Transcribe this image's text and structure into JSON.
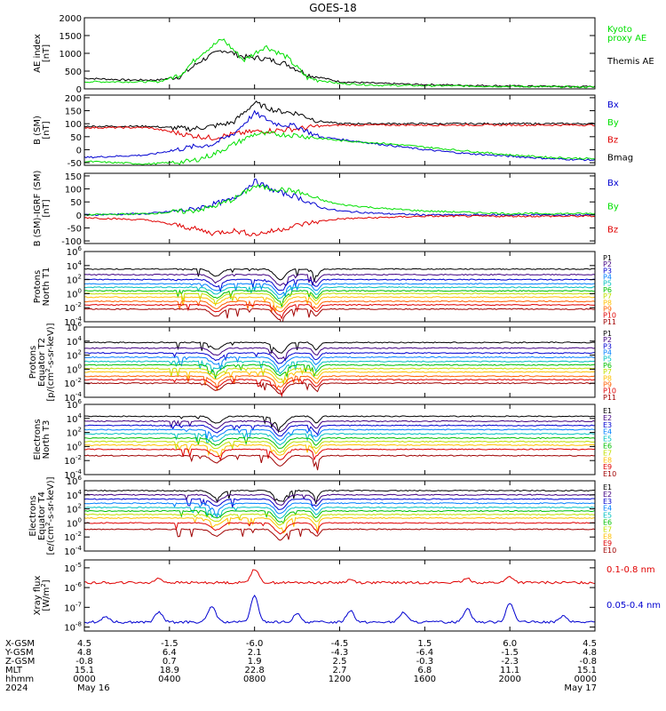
{
  "title": "GOES-18",
  "colors": {
    "black": "#000000",
    "green": "#00e000",
    "blue": "#0000d0",
    "red": "#e00000"
  },
  "chart_data": [
    {
      "type": "line",
      "ylabel": [
        "AE index",
        "[nT]"
      ],
      "yticks": [
        "2000",
        "1500",
        "1000",
        "500",
        "0"
      ],
      "ylim": [
        0,
        2000
      ],
      "legend": [
        {
          "text": "Kyoto",
          "color": "#00e000"
        },
        {
          "text": "proxy AE",
          "color": "#00e000"
        },
        {
          "text": "Themis AE",
          "color": "#000000"
        }
      ],
      "series": [
        {
          "color": "#000000",
          "x": [
            0,
            2,
            3.5,
            4.5,
            5.5,
            6.5,
            7.5,
            8.5,
            9.5,
            10.5,
            12,
            14,
            16,
            18,
            20,
            22,
            24
          ],
          "values": [
            300,
            250,
            250,
            350,
            800,
            1100,
            900,
            850,
            700,
            400,
            200,
            150,
            120,
            100,
            80,
            70,
            60
          ]
        },
        {
          "color": "#00e000",
          "x": [
            0,
            2,
            3.5,
            4.5,
            5.5,
            6.5,
            7.5,
            8.5,
            9.5,
            10.5,
            12,
            14,
            16,
            18,
            20,
            22,
            24
          ],
          "values": [
            200,
            200,
            200,
            400,
            1000,
            1400,
            800,
            1200,
            900,
            300,
            150,
            100,
            90,
            80,
            70,
            60,
            50
          ]
        }
      ]
    },
    {
      "type": "line",
      "ylabel": [
        "B (SM)",
        "[nT]"
      ],
      "yticks": [
        "200",
        "150",
        "100",
        "50",
        "0",
        "-50"
      ],
      "ylim": [
        -60,
        210
      ],
      "legend": [
        {
          "text": "Bx",
          "color": "#0000d0"
        },
        {
          "text": "By",
          "color": "#00e000"
        },
        {
          "text": "Bz",
          "color": "#e00000"
        },
        {
          "text": "Bmag",
          "color": "#000000"
        }
      ],
      "series": [
        {
          "color": "#000000",
          "x": [
            0,
            3,
            5,
            6,
            7,
            8,
            9,
            10,
            11,
            12,
            14,
            16,
            18,
            20,
            22,
            24
          ],
          "values": [
            90,
            90,
            80,
            90,
            105,
            180,
            150,
            140,
            110,
            100,
            100,
            100,
            100,
            100,
            100,
            100
          ]
        },
        {
          "color": "#e00000",
          "x": [
            0,
            3,
            5,
            6,
            7,
            8,
            9,
            10,
            11,
            12,
            14,
            16,
            18,
            20,
            22,
            24
          ],
          "values": [
            85,
            85,
            55,
            45,
            60,
            70,
            75,
            80,
            90,
            95,
            95,
            95,
            95,
            95,
            95,
            95
          ]
        },
        {
          "color": "#0000d0",
          "x": [
            0,
            3,
            5,
            6,
            7,
            8,
            9,
            10,
            11,
            12,
            14,
            16,
            18,
            20,
            22,
            24
          ],
          "values": [
            -30,
            -20,
            10,
            20,
            60,
            140,
            100,
            90,
            50,
            40,
            20,
            0,
            -15,
            -25,
            -35,
            -40
          ]
        },
        {
          "color": "#00e000",
          "x": [
            0,
            3,
            5,
            6,
            7,
            8,
            9,
            10,
            11,
            12,
            14,
            16,
            18,
            20,
            22,
            24
          ],
          "values": [
            -45,
            -55,
            -45,
            -20,
            20,
            60,
            60,
            55,
            45,
            35,
            25,
            10,
            -5,
            -20,
            -30,
            -35
          ]
        }
      ]
    },
    {
      "type": "line",
      "ylabel": [
        "B (SM)-IGRF (SM)",
        "[nT]"
      ],
      "yticks": [
        "150",
        "100",
        "50",
        "0",
        "-50",
        "-100"
      ],
      "ylim": [
        -110,
        160
      ],
      "legend": [
        {
          "text": "Bx",
          "color": "#0000d0"
        },
        {
          "text": "By",
          "color": "#00e000"
        },
        {
          "text": "Bz",
          "color": "#e00000"
        }
      ],
      "series": [
        {
          "color": "#0000d0",
          "x": [
            0,
            3,
            5,
            6,
            7,
            8,
            9,
            10,
            11,
            12,
            14,
            16,
            18,
            20,
            22,
            24
          ],
          "values": [
            0,
            5,
            20,
            40,
            60,
            130,
            90,
            70,
            30,
            15,
            5,
            0,
            0,
            0,
            0,
            0
          ]
        },
        {
          "color": "#00e000",
          "x": [
            0,
            3,
            5,
            6,
            7,
            8,
            9,
            10,
            11,
            12,
            14,
            16,
            18,
            20,
            22,
            24
          ],
          "values": [
            0,
            5,
            15,
            30,
            60,
            110,
            100,
            90,
            60,
            40,
            25,
            15,
            10,
            5,
            5,
            5
          ]
        },
        {
          "color": "#e00000",
          "x": [
            0,
            3,
            5,
            6,
            7,
            8,
            9,
            10,
            11,
            12,
            14,
            16,
            18,
            20,
            22,
            24
          ],
          "values": [
            -10,
            -20,
            -50,
            -70,
            -60,
            -75,
            -60,
            -40,
            -25,
            -15,
            -10,
            -5,
            -5,
            -5,
            -5,
            -5
          ]
        }
      ]
    },
    {
      "type": "line",
      "ylabel": [
        "Protons",
        "North T1"
      ],
      "ylog": true,
      "yticks": [
        "10^6",
        "10^4",
        "10^2",
        "10^0",
        "10^-2",
        "10^-4"
      ],
      "ylim": [
        -4,
        6
      ],
      "legend": [
        {
          "text": "P1",
          "color": "#000000"
        },
        {
          "text": "P2",
          "color": "#400080"
        },
        {
          "text": "P3",
          "color": "#0000d0"
        },
        {
          "text": "P4",
          "color": "#0080ff"
        },
        {
          "text": "P5",
          "color": "#00c0c0"
        },
        {
          "text": "P6",
          "color": "#00c000"
        },
        {
          "text": "P7",
          "color": "#c0e000"
        },
        {
          "text": "P8",
          "color": "#ffc000"
        },
        {
          "text": "P9",
          "color": "#ff6000"
        },
        {
          "text": "P10",
          "color": "#e00000"
        },
        {
          "text": "P11",
          "color": "#a00000"
        }
      ],
      "series": [
        {
          "color": "#000000",
          "level": 3.5
        },
        {
          "color": "#400080",
          "level": 2.7
        },
        {
          "color": "#0000d0",
          "level": 2.0
        },
        {
          "color": "#0080ff",
          "level": 1.4
        },
        {
          "color": "#00c0c0",
          "level": 0.9
        },
        {
          "color": "#00c000",
          "level": 0.4
        },
        {
          "color": "#c0e000",
          "level": 0.0
        },
        {
          "color": "#ffc000",
          "level": -0.5
        },
        {
          "color": "#ff6000",
          "level": -1.1
        },
        {
          "color": "#e00000",
          "level": -1.6
        },
        {
          "color": "#a00000",
          "level": -2.2
        }
      ]
    },
    {
      "type": "line",
      "ylabel": [
        "Protons",
        "Equator T2",
        "[p/(cm^2-s-sr-keV)]"
      ],
      "ylog": true,
      "yticks": [
        "10^6",
        "10^4",
        "10^2",
        "10^0",
        "10^-2",
        "10^-4"
      ],
      "ylim": [
        -4,
        6
      ],
      "legend": [
        {
          "text": "P1",
          "color": "#000000"
        },
        {
          "text": "P2",
          "color": "#400080"
        },
        {
          "text": "P3",
          "color": "#0000d0"
        },
        {
          "text": "P4",
          "color": "#0080ff"
        },
        {
          "text": "P5",
          "color": "#00c0c0"
        },
        {
          "text": "P6",
          "color": "#00c000"
        },
        {
          "text": "P7",
          "color": "#c0e000"
        },
        {
          "text": "P8",
          "color": "#ffc000"
        },
        {
          "text": "P9",
          "color": "#ff6000"
        },
        {
          "text": "P10",
          "color": "#e00000"
        },
        {
          "text": "P11",
          "color": "#a00000"
        }
      ],
      "series": [
        {
          "color": "#000000",
          "level": 3.8
        },
        {
          "color": "#400080",
          "level": 3.0
        },
        {
          "color": "#0000d0",
          "level": 2.3
        },
        {
          "color": "#0080ff",
          "level": 1.7
        },
        {
          "color": "#00c0c0",
          "level": 1.1
        },
        {
          "color": "#00c000",
          "level": 0.6
        },
        {
          "color": "#c0e000",
          "level": 0.1
        },
        {
          "color": "#ffc000",
          "level": -0.4
        },
        {
          "color": "#ff6000",
          "level": -1.0
        },
        {
          "color": "#e00000",
          "level": -1.5
        },
        {
          "color": "#a00000",
          "level": -2.0
        }
      ]
    },
    {
      "type": "line",
      "ylabel": [
        "Electrons",
        "North T3"
      ],
      "ylog": true,
      "yticks": [
        "10^6",
        "10^4",
        "10^2",
        "10^0",
        "10^-2",
        "10^-4"
      ],
      "ylim": [
        -4,
        6
      ],
      "legend": [
        {
          "text": "E1",
          "color": "#000000"
        },
        {
          "text": "E2",
          "color": "#400080"
        },
        {
          "text": "E3",
          "color": "#0000d0"
        },
        {
          "text": "E4",
          "color": "#0080ff"
        },
        {
          "text": "E5",
          "color": "#00c0c0"
        },
        {
          "text": "E6",
          "color": "#00c000"
        },
        {
          "text": "E7",
          "color": "#c0e000"
        },
        {
          "text": "E8",
          "color": "#ffc000"
        },
        {
          "text": "E9",
          "color": "#e00000"
        },
        {
          "text": "E10",
          "color": "#a00000"
        }
      ],
      "series": [
        {
          "color": "#000000",
          "level": 4.3
        },
        {
          "color": "#400080",
          "level": 3.6
        },
        {
          "color": "#0000d0",
          "level": 3.0
        },
        {
          "color": "#0080ff",
          "level": 2.4
        },
        {
          "color": "#00c0c0",
          "level": 1.8
        },
        {
          "color": "#00c000",
          "level": 1.2
        },
        {
          "color": "#c0e000",
          "level": 0.7
        },
        {
          "color": "#ffc000",
          "level": 0.2
        },
        {
          "color": "#e00000",
          "level": -0.4
        },
        {
          "color": "#a00000",
          "level": -1.3
        }
      ]
    },
    {
      "type": "line",
      "ylabel": [
        "Electrons",
        "Equator T4",
        "[e/(cm^2-s-sr-keV)]"
      ],
      "ylog": true,
      "yticks": [
        "10^6",
        "10^4",
        "10^2",
        "10^0",
        "10^-2",
        "10^-4"
      ],
      "ylim": [
        -4,
        6
      ],
      "legend": [
        {
          "text": "E1",
          "color": "#000000"
        },
        {
          "text": "E2",
          "color": "#400080"
        },
        {
          "text": "E3",
          "color": "#0000d0"
        },
        {
          "text": "E4",
          "color": "#0080ff"
        },
        {
          "text": "E5",
          "color": "#00c0c0"
        },
        {
          "text": "E6",
          "color": "#00c000"
        },
        {
          "text": "E7",
          "color": "#c0e000"
        },
        {
          "text": "E8",
          "color": "#ffc000"
        },
        {
          "text": "E9",
          "color": "#e00000"
        },
        {
          "text": "E10",
          "color": "#a00000"
        }
      ],
      "series": [
        {
          "color": "#000000",
          "level": 4.6
        },
        {
          "color": "#400080",
          "level": 4.0
        },
        {
          "color": "#0000d0",
          "level": 3.4
        },
        {
          "color": "#0080ff",
          "level": 2.8
        },
        {
          "color": "#00c0c0",
          "level": 2.2
        },
        {
          "color": "#00c000",
          "level": 1.7
        },
        {
          "color": "#c0e000",
          "level": 1.2
        },
        {
          "color": "#ffc000",
          "level": 0.7
        },
        {
          "color": "#e00000",
          "level": 0.0
        },
        {
          "color": "#a00000",
          "level": -0.9
        }
      ]
    },
    {
      "type": "line",
      "ylabel": [
        "Xray flux",
        "[W/m^2]"
      ],
      "ylog": true,
      "yticks": [
        "10^-5",
        "10^-6",
        "10^-7",
        "10^-8"
      ],
      "ylim": [
        -8.2,
        -4.6
      ],
      "legend": [
        {
          "text": "0.1-0.8 nm",
          "color": "#e00000"
        },
        {
          "text": "0.05-0.4 nm",
          "color": "#0000d0"
        }
      ],
      "series": [
        {
          "color": "#e00000",
          "level": -5.75,
          "spikes": [
            [
              3.5,
              0.2
            ],
            [
              8.0,
              0.7
            ],
            [
              12.5,
              0.15
            ],
            [
              18.0,
              0.2
            ],
            [
              20.0,
              0.3
            ]
          ]
        },
        {
          "color": "#0000d0",
          "level": -7.75,
          "spikes": [
            [
              1.0,
              0.3
            ],
            [
              3.5,
              0.5
            ],
            [
              6.0,
              0.8
            ],
            [
              8.0,
              1.3
            ],
            [
              10.0,
              0.4
            ],
            [
              12.5,
              0.6
            ],
            [
              15.0,
              0.5
            ],
            [
              18.0,
              0.7
            ],
            [
              20.0,
              1.0
            ],
            [
              22.5,
              0.3
            ]
          ]
        }
      ]
    }
  ],
  "ephemeris": {
    "labels": [
      "X-GSM",
      "Y-GSM",
      "Z-GSM",
      "MLT",
      "hhmm",
      "2024"
    ],
    "columns": [
      [
        "4.5",
        "4.8",
        "-0.8",
        "15.1",
        "0000",
        "May 16"
      ],
      [
        "-1.5",
        "6.4",
        "0.7",
        "18.9",
        "0400",
        ""
      ],
      [
        "-6.0",
        "2.1",
        "1.9",
        "22.8",
        "0800",
        ""
      ],
      [
        "-4.5",
        "-4.3",
        "2.5",
        "2.7",
        "1200",
        ""
      ],
      [
        "1.5",
        "-6.4",
        "-0.3",
        "6.8",
        "1600",
        ""
      ],
      [
        "6.0",
        "-1.5",
        "-2.3",
        "11.1",
        "2000",
        ""
      ],
      [
        "4.5",
        "4.8",
        "-0.8",
        "15.1",
        "0000",
        "May 17"
      ]
    ]
  }
}
